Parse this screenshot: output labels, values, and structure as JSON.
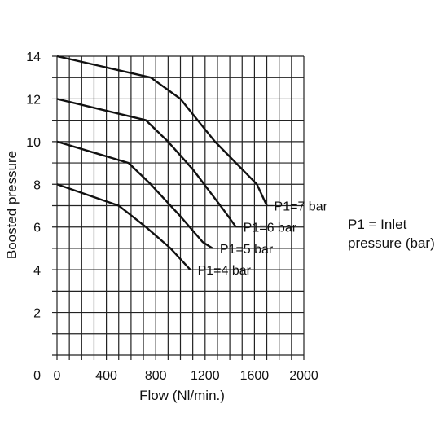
{
  "chart_data": {
    "type": "line",
    "xlabel": "Flow (Nl/min.)",
    "ylabel": "Boosted pressure",
    "xlim": [
      0,
      2000
    ],
    "ylim": [
      0,
      14
    ],
    "x_ticks": [
      "0",
      "400",
      "800",
      "1200",
      "1600",
      "2000"
    ],
    "y_ticks": [
      "2",
      "4",
      "6",
      "8",
      "10",
      "12",
      "14"
    ],
    "grid": true,
    "series": [
      {
        "name": "P1=7 bar",
        "x": [
          0,
          760,
          1000,
          1280,
          1620,
          1700
        ],
        "y": [
          14,
          13,
          12,
          10,
          8,
          7
        ]
      },
      {
        "name": "P1=6 bar",
        "x": [
          0,
          720,
          900,
          1100,
          1350,
          1450
        ],
        "y": [
          12,
          11,
          10,
          8.7,
          6.8,
          6
        ]
      },
      {
        "name": "P1=5 bar",
        "x": [
          0,
          580,
          760,
          1000,
          1180,
          1260
        ],
        "y": [
          10,
          9,
          8,
          6.5,
          5.3,
          5
        ]
      },
      {
        "name": "P1=4 bar",
        "x": [
          0,
          500,
          720,
          920,
          1080
        ],
        "y": [
          8,
          7,
          6,
          5,
          4
        ]
      }
    ],
    "note": [
      "P1 = Inlet",
      "pressure (bar)"
    ]
  }
}
